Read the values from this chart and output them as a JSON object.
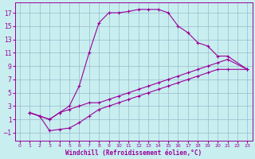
{
  "xlabel": "Windchill (Refroidissement éolien,°C)",
  "background_color": "#c8eef0",
  "grid_color": "#99bbcc",
  "line_color": "#990099",
  "xlim": [
    -0.5,
    23.5
  ],
  "ylim": [
    -2.2,
    18.5
  ],
  "xticks": [
    0,
    1,
    2,
    3,
    4,
    5,
    6,
    7,
    8,
    9,
    10,
    11,
    12,
    13,
    14,
    15,
    16,
    17,
    18,
    19,
    20,
    21,
    22,
    23
  ],
  "yticks": [
    -1,
    1,
    3,
    5,
    7,
    9,
    11,
    13,
    15,
    17
  ],
  "line1_x": [
    1,
    2,
    3,
    4,
    5,
    6,
    7,
    8,
    9,
    10,
    11,
    12,
    13,
    14,
    15,
    16,
    17,
    18,
    19,
    20,
    21,
    23
  ],
  "line1_y": [
    2,
    1.5,
    1,
    2,
    3,
    6,
    11,
    15.5,
    17,
    17,
    17.2,
    17.5,
    17.5,
    17.5,
    17,
    15,
    14,
    12.5,
    12,
    10.5,
    10.5,
    8.5
  ],
  "line2_x": [
    1,
    2,
    3,
    4,
    5,
    6,
    7,
    8,
    9,
    10,
    11,
    12,
    13,
    14,
    15,
    16,
    17,
    18,
    19,
    20,
    21,
    23
  ],
  "line2_y": [
    2,
    1.5,
    1,
    2,
    2.5,
    3,
    3.5,
    3.5,
    4,
    4.5,
    5,
    5.5,
    6,
    6.5,
    7,
    7.5,
    8,
    8.5,
    9,
    9.5,
    10,
    8.5
  ],
  "line3_x": [
    1,
    2,
    3,
    4,
    5,
    6,
    7,
    8,
    9,
    10,
    11,
    12,
    13,
    14,
    15,
    16,
    17,
    18,
    19,
    20,
    21,
    23
  ],
  "line3_y": [
    2,
    1.5,
    -0.7,
    -0.5,
    -0.3,
    0.5,
    1.5,
    2.5,
    3,
    3.5,
    4,
    4.5,
    5,
    5.5,
    6,
    6.5,
    7,
    7.5,
    8,
    8.5,
    8.5,
    8.5
  ]
}
